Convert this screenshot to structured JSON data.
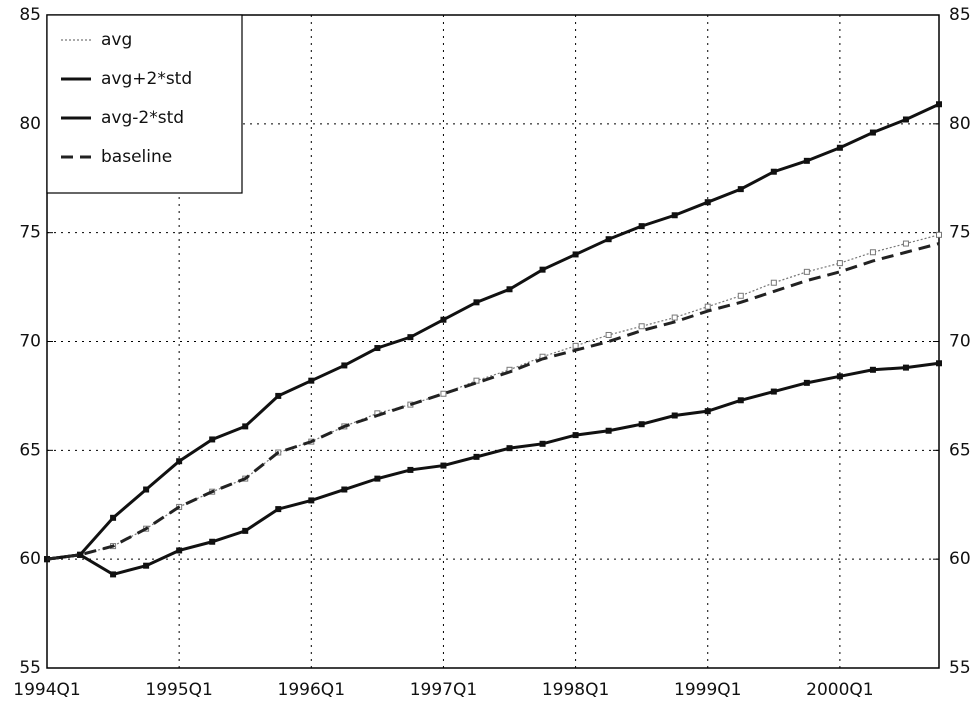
{
  "chart_data": {
    "type": "line",
    "categories": [
      "1994Q1",
      null,
      null,
      null,
      "1995Q1",
      null,
      null,
      null,
      "1996Q1",
      null,
      null,
      null,
      "1997Q1",
      null,
      null,
      null,
      "1998Q1",
      null,
      null,
      null,
      "1999Q1",
      null,
      null,
      null,
      "2000Q1",
      null,
      null,
      null
    ],
    "series": [
      {
        "name": "avg",
        "color": "#777777",
        "line_style": "dotted",
        "marker": true,
        "values": [
          60,
          60.2,
          60.6,
          61.4,
          62.4,
          63.1,
          63.7,
          64.9,
          65.4,
          66.1,
          66.7,
          67.1,
          67.6,
          68.2,
          68.7,
          69.3,
          69.8,
          70.3,
          70.7,
          71.1,
          71.6,
          72.1,
          72.7,
          73.2,
          73.6,
          74.1,
          74.5,
          74.9
        ]
      },
      {
        "name": "avg+2*std",
        "color": "#111111",
        "line_style": "solid",
        "marker": true,
        "values": [
          60,
          60.2,
          61.9,
          63.2,
          64.5,
          65.5,
          66.1,
          67.5,
          68.2,
          68.9,
          69.7,
          70.2,
          71.0,
          71.8,
          72.4,
          73.3,
          74.0,
          74.7,
          75.3,
          75.8,
          76.4,
          77.0,
          77.8,
          78.3,
          78.9,
          79.6,
          80.2,
          80.9
        ]
      },
      {
        "name": "avg-2*std",
        "color": "#111111",
        "line_style": "solid",
        "marker": true,
        "values": [
          60,
          60.2,
          59.3,
          59.7,
          60.4,
          60.8,
          61.3,
          62.3,
          62.7,
          63.2,
          63.7,
          64.1,
          64.3,
          64.7,
          65.1,
          65.3,
          65.7,
          65.9,
          66.2,
          66.6,
          66.8,
          67.3,
          67.7,
          68.1,
          68.4,
          68.7,
          68.8,
          69.0
        ]
      },
      {
        "name": "baseline",
        "color": "#222222",
        "line_style": "dashed",
        "marker": false,
        "values": [
          60,
          60.2,
          60.6,
          61.4,
          62.4,
          63.1,
          63.7,
          64.9,
          65.4,
          66.1,
          66.6,
          67.1,
          67.6,
          68.1,
          68.6,
          69.2,
          69.6,
          70.0,
          70.5,
          70.9,
          71.4,
          71.8,
          72.3,
          72.8,
          73.2,
          73.7,
          74.1,
          74.5
        ]
      }
    ],
    "ylim": [
      55,
      85
    ],
    "yticks": [
      55,
      60,
      65,
      70,
      75,
      80,
      85
    ],
    "y2lim": [
      55,
      85
    ],
    "y2ticks": [
      55,
      60,
      65,
      70,
      75,
      80,
      85
    ],
    "grid": true,
    "legend": "upper left"
  }
}
